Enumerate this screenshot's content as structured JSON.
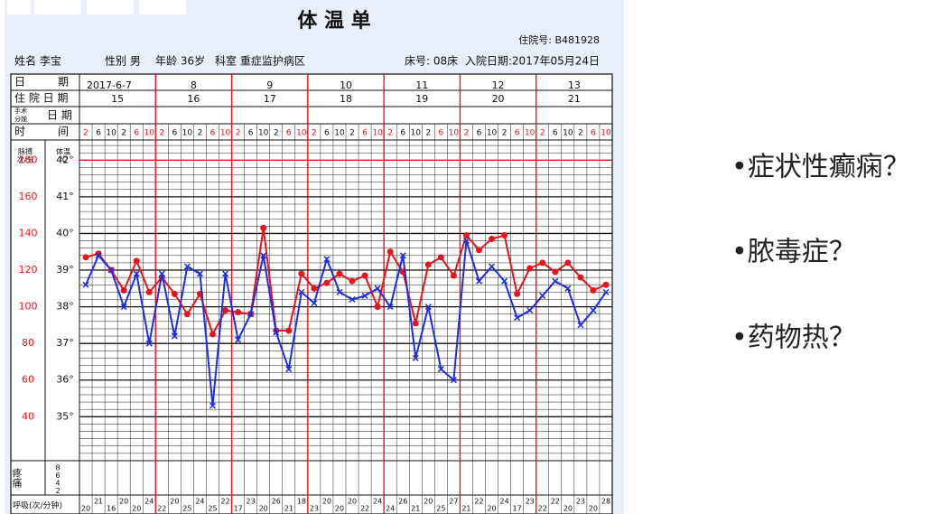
{
  "header": {
    "title": "体 温 单",
    "inpatient_no": "住院号: B481928",
    "name": "姓名 李宝",
    "sex": "性别 男",
    "age": "年龄 36岁",
    "dept": "科室 重症监护病区",
    "bed": "床号: 08床",
    "admit": "入院日期:2017年05月24日"
  },
  "row_labels": {
    "date": "日　　　期",
    "hospital_day": "住 院 日 期",
    "surgery_a": "手术",
    "surgery_b": "分娩",
    "surgery_c": "日 期",
    "time": "时　　　间"
  },
  "dates": [
    "2017-6-7",
    "8",
    "9",
    "10",
    "11",
    "12",
    "13"
  ],
  "hospital_days": [
    15,
    16,
    17,
    18,
    19,
    20,
    21
  ],
  "chart_data": {
    "type": "line",
    "categories": [
      "2",
      "6",
      "10",
      "2",
      "6",
      "10",
      "2",
      "6",
      "10",
      "2",
      "6",
      "10",
      "2",
      "6",
      "10",
      "2",
      "6",
      "10",
      "2",
      "6",
      "10",
      "2",
      "6",
      "10",
      "2",
      "6",
      "10",
      "2",
      "6",
      "10",
      "2",
      "6",
      "10",
      "2",
      "6",
      "10",
      "2",
      "6",
      "10",
      "2",
      "6",
      "10"
    ],
    "series": [
      {
        "color": "#e8141b",
        "values": [
          127,
          129,
          120,
          109,
          125,
          108,
          116,
          107,
          96,
          107,
          85,
          98,
          97,
          96,
          143,
          87,
          87,
          118,
          110,
          113,
          118,
          114,
          117,
          100,
          130,
          119,
          91,
          123,
          127,
          117,
          139,
          131,
          137,
          139,
          107,
          121,
          124,
          119,
          124,
          116,
          109,
          112
        ]
      },
      {
        "color": "#1d2ee0",
        "axis": "y2",
        "values": [
          38.6,
          39.4,
          39.0,
          38.0,
          38.9,
          37.0,
          38.9,
          37.2,
          39.1,
          38.9,
          35.3,
          38.9,
          37.1,
          37.8,
          39.4,
          37.3,
          36.3,
          38.4,
          38.1,
          39.3,
          38.4,
          38.2,
          38.3,
          38.5,
          38.0,
          39.4,
          36.6,
          38.0,
          36.3,
          36.0,
          39.8,
          38.7,
          39.1,
          38.7,
          37.7,
          37.9,
          38.3,
          38.7,
          38.5,
          37.5,
          37.9,
          38.4
        ]
      }
    ],
    "ylim": [
      16,
      191
    ],
    "yticks": [
      40,
      60,
      80,
      100,
      120,
      140,
      160,
      180
    ],
    "y2lim": [
      33.8,
      42.55
    ],
    "y2ticks": [
      {
        "value": 35,
        "label": "35°"
      },
      {
        "value": 36,
        "label": "36°"
      },
      {
        "value": 37,
        "label": "37°"
      },
      {
        "value": 38,
        "label": "38°"
      },
      {
        "value": 39,
        "label": "39°"
      },
      {
        "value": 40,
        "label": "40°"
      },
      {
        "value": 41,
        "label": "41°"
      },
      {
        "value": 42,
        "label": "42°"
      }
    ],
    "y_label_a": "脉搏",
    "y_label_b": "次/分",
    "y2_label_a": "体温",
    "y2_label_b": "℃"
  },
  "pain": {
    "label": "疼痛",
    "scale": [
      8,
      6,
      4,
      2
    ]
  },
  "respiration": {
    "label": "呼吸(次/分钟)",
    "values": [
      20,
      21,
      16,
      20,
      20,
      24,
      22,
      20,
      25,
      24,
      25,
      22,
      17,
      23,
      20,
      26,
      21,
      18,
      23,
      20,
      20,
      20,
      22,
      24,
      24,
      26,
      21,
      20,
      25,
      27,
      21,
      22,
      20,
      24,
      17,
      23,
      22,
      22,
      20,
      23,
      20,
      28
    ]
  },
  "bullets": [
    "•症状性癫痫？",
    "•脓毒症？",
    "•药物热？"
  ]
}
